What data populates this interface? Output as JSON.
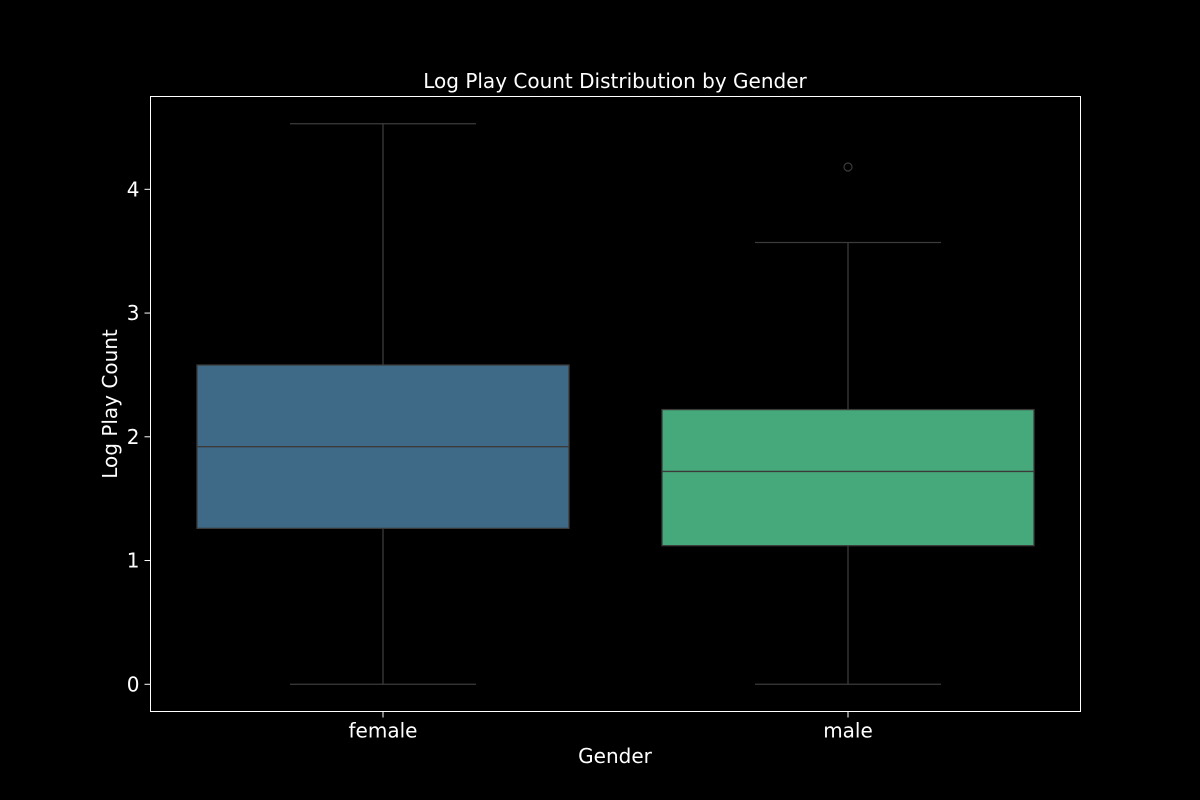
{
  "chart_data": {
    "type": "box",
    "title": "Log Play Count Distribution by Gender",
    "xlabel": "Gender",
    "ylabel": "Log Play Count",
    "ylim": [
      -0.22,
      4.75
    ],
    "yticks": [
      0,
      1,
      2,
      3,
      4
    ],
    "categories": [
      "female",
      "male"
    ],
    "boxes": [
      {
        "category": "female",
        "whisker_low": 0.0,
        "q1": 1.26,
        "median": 1.92,
        "q3": 2.58,
        "whisker_high": 4.53,
        "outliers": [],
        "color": "#3E6A87"
      },
      {
        "category": "male",
        "whisker_low": 0.0,
        "q1": 1.12,
        "median": 1.72,
        "q3": 2.22,
        "whisker_high": 3.57,
        "outliers": [
          4.18
        ],
        "color": "#46A97B"
      }
    ],
    "grid": false,
    "background": "#000000",
    "line_color": "#3b3b3b",
    "frame_color": "#ffffff"
  }
}
